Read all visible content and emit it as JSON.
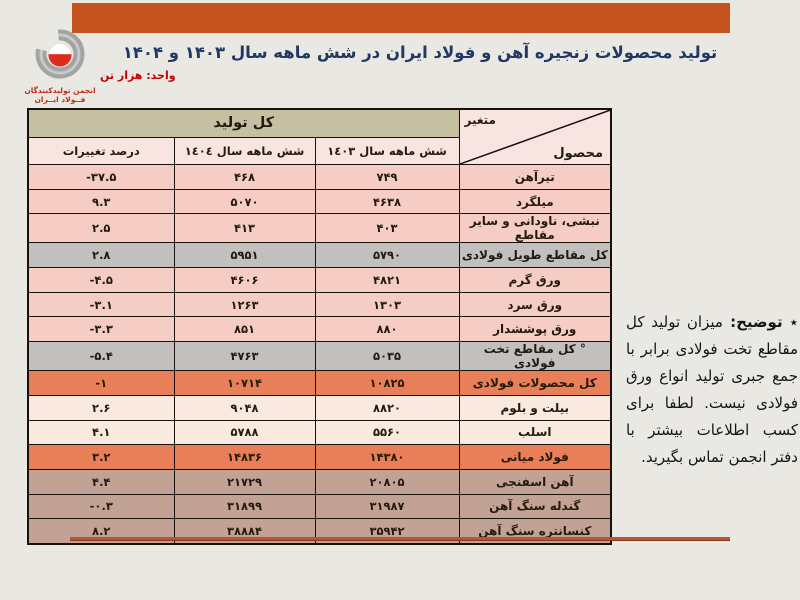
{
  "slide": {
    "title": "تولید محصولات زنجیره آهن و فولاد ایران در شش ماهه سال ۱۴۰۳ و ۱۴۰۴",
    "unit_label": "واحد: هزار تن",
    "logo": {
      "line1": "انجمن تولیدکنندگان",
      "line2": "فــولاد ایــران"
    }
  },
  "table": {
    "corner": {
      "variable_label": "متغیر",
      "product_label": "محصول"
    },
    "group_header": "کل تولید",
    "column_headers": {
      "h1403": "شش ماهه سال ١٤٠٣",
      "h1404": "شش ماهه سال ١٤٠٤",
      "pct": "درصد تغییرات"
    },
    "rows": [
      {
        "product": "تیرآهن",
        "y1403": "۷۴۹",
        "y1404": "۴۶۸",
        "pct": "-۳۷.۵",
        "tone": "pink"
      },
      {
        "product": "میلگرد",
        "y1403": "۴۶۳۸",
        "y1404": "۵۰۷۰",
        "pct": "۹.۳",
        "tone": "pink"
      },
      {
        "product": "نبشی، ناودانی و سایر مقاطع",
        "y1403": "۴۰۳",
        "y1404": "۴۱۳",
        "pct": "۲.۵",
        "tone": "pink"
      },
      {
        "product": "کل مقاطع طویل فولادی",
        "y1403": "۵۷۹۰",
        "y1404": "۵۹۵۱",
        "pct": "۲.۸",
        "tone": "gray"
      },
      {
        "product": "ورق گرم",
        "y1403": "۴۸۲۱",
        "y1404": "۴۶۰۶",
        "pct": "-۴.۵",
        "tone": "pink"
      },
      {
        "product": "ورق سرد",
        "y1403": "۱۳۰۳",
        "y1404": "۱۲۶۳",
        "pct": "-۳.۱",
        "tone": "pink"
      },
      {
        "product": "ورق پوششدار",
        "y1403": "۸۸۰",
        "y1404": "۸۵۱",
        "pct": "-۳.۳",
        "tone": "pink"
      },
      {
        "product": "° کل مقاطع تخت فولادی",
        "y1403": "۵۰۳۵",
        "y1404": "۴۷۶۳",
        "pct": "-۵.۴",
        "tone": "gray"
      },
      {
        "product": "کل محصولات فولادی",
        "y1403": "۱۰۸۲۵",
        "y1404": "۱۰۷۱۴",
        "pct": "-۱",
        "tone": "orange"
      },
      {
        "product": "بیلت و بلوم",
        "y1403": "۸۸۲۰",
        "y1404": "۹۰۴۸",
        "pct": "۲.۶",
        "tone": "peach"
      },
      {
        "product": "اسلب",
        "y1403": "۵۵۶۰",
        "y1404": "۵۷۸۸",
        "pct": "۴.۱",
        "tone": "peach"
      },
      {
        "product": "فولاد میانی",
        "y1403": "۱۴۳۸۰",
        "y1404": "۱۴۸۳۶",
        "pct": "۳.۲",
        "tone": "orange"
      },
      {
        "product": "آهن اسفنجی",
        "y1403": "۲۰۸۰۵",
        "y1404": "۲۱۷۲۹",
        "pct": "۴.۴",
        "tone": "tan"
      },
      {
        "product": "گندله سنگ آهن",
        "y1403": "۳۱۹۸۷",
        "y1404": "۳۱۸۹۹",
        "pct": "-۰.۳",
        "tone": "tan"
      },
      {
        "product": "کنسانتره سنگ آهن",
        "y1403": "۳۵۹۴۲",
        "y1404": "۳۸۸۸۴",
        "pct": "۸.۲",
        "tone": "tan"
      }
    ]
  },
  "note": {
    "star": "٭",
    "label": "توضیح:",
    "body": " میزان تولید کل مقاطع تخت فولادی برابر با جمع جبری تولید انواع ورق فولادی نیست. لطفا برای کسب اطلاعات بیشتر با دفتر انجمن تماس بگیرید."
  },
  "colors": {
    "accent_orange": "#C4531D",
    "title_navy": "#1F3864",
    "unit_red": "#C00000",
    "header_beige": "#C6C0A2",
    "header_pink": "#F8E4E1",
    "row_pink": "#F5CDC5",
    "row_gray": "#C1C0BF",
    "row_orange": "#E87F58",
    "row_peach": "#F9E9DE",
    "row_tan": "#C3A296",
    "divider_red": "#BC542F"
  }
}
